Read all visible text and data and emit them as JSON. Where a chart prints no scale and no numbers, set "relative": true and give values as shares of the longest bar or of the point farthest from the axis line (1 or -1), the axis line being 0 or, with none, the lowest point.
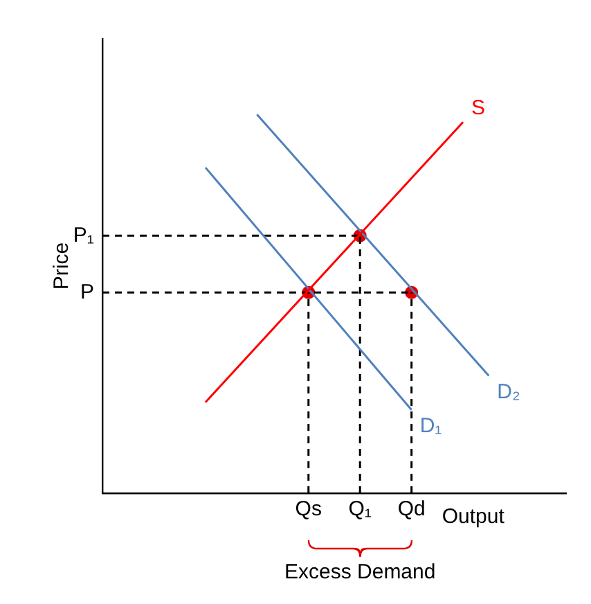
{
  "chart_data": {
    "type": "line",
    "xlabel": "Output",
    "ylabel": "Price",
    "relative": true,
    "categories": [
      null,
      null,
      null,
      null,
      null,
      null,
      null,
      null,
      "Qs",
      null,
      "Q₁",
      null,
      "Qd",
      null,
      null,
      null,
      null,
      null,
      null
    ],
    "grid": false,
    "legend": false,
    "marker": "none",
    "series": [
      {
        "name": "S",
        "color": "#ff0000",
        "values": [
          null,
          null,
          null,
          null,
          0.24,
          null,
          null,
          null,
          null,
          null,
          null,
          null,
          null,
          null,
          0.98,
          null,
          null,
          null,
          null
        ]
      },
      {
        "name": "D₁",
        "color": "#4f81bd",
        "values": [
          null,
          null,
          null,
          null,
          0.86,
          null,
          null,
          null,
          null,
          null,
          null,
          null,
          0.22,
          null,
          null,
          null,
          null,
          null,
          null
        ]
      },
      {
        "name": "D₂",
        "color": "#4f81bd",
        "values": [
          null,
          null,
          null,
          null,
          null,
          null,
          1,
          null,
          null,
          null,
          null,
          null,
          null,
          null,
          null,
          0.31,
          null,
          null,
          null
        ]
      },
      {
        "color": "#000000",
        "line_style": "dashed",
        "values": [
          0.53,
          null,
          null,
          null,
          null,
          null,
          null,
          null,
          null,
          null,
          null,
          null,
          0.53,
          null,
          null,
          null,
          null,
          null,
          null
        ]
      },
      {
        "color": "#000000",
        "line_style": "dashed",
        "values": [
          0.68,
          null,
          null,
          null,
          null,
          null,
          null,
          null,
          null,
          null,
          0.68,
          null,
          null,
          null,
          null,
          null,
          null,
          null,
          null
        ]
      },
      {
        "color": "#000000",
        "line_style": "dashed",
        "x": [
          "Qs",
          "Qs"
        ],
        "values": [
          0,
          0.53
        ]
      },
      {
        "color": "#000000",
        "line_style": "dashed",
        "x": [
          "Q₁",
          "Q₁"
        ],
        "values": [
          0,
          0.68
        ]
      },
      {
        "color": "#000000",
        "line_style": "dashed",
        "x": [
          "Qd",
          "Qd"
        ],
        "values": [
          0,
          0.53
        ]
      },
      {
        "type": "scatter",
        "color": "#e00000",
        "marker": "circle",
        "x": [
          "Qs",
          "Q₁",
          "Qd"
        ],
        "values": [
          0.53,
          0.68,
          0.53
        ]
      }
    ],
    "annotations": [
      "P",
      "P₁",
      "Excess Demand"
    ]
  }
}
